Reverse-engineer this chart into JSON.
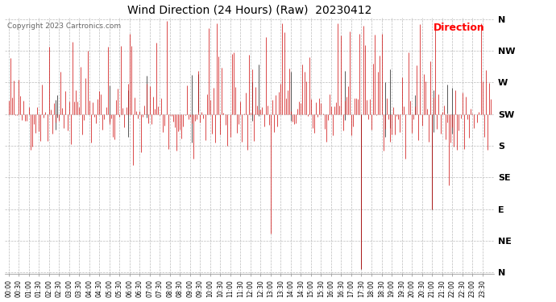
{
  "title": "Wind Direction (24 Hours) (Raw)  20230412",
  "copyright": "Copyright 2023 Cartronics.com",
  "legend_label": "Direction",
  "legend_color": "#ff0000",
  "line_color": "#cc0000",
  "dark_color": "#555555",
  "background_color": "#ffffff",
  "grid_color": "#aaaaaa",
  "direction_labels": [
    "N",
    "NW",
    "W",
    "SW",
    "S",
    "SE",
    "E",
    "NE",
    "N"
  ],
  "direction_values": [
    360,
    315,
    270,
    225,
    180,
    135,
    90,
    45,
    0
  ],
  "ylim_min": 0,
  "ylim_max": 360,
  "num_points": 288,
  "seed": 42,
  "base_direction": 225,
  "base_noise": 28,
  "tick_every_n": 6,
  "figwidth": 6.9,
  "figheight": 3.75,
  "dpi": 100
}
